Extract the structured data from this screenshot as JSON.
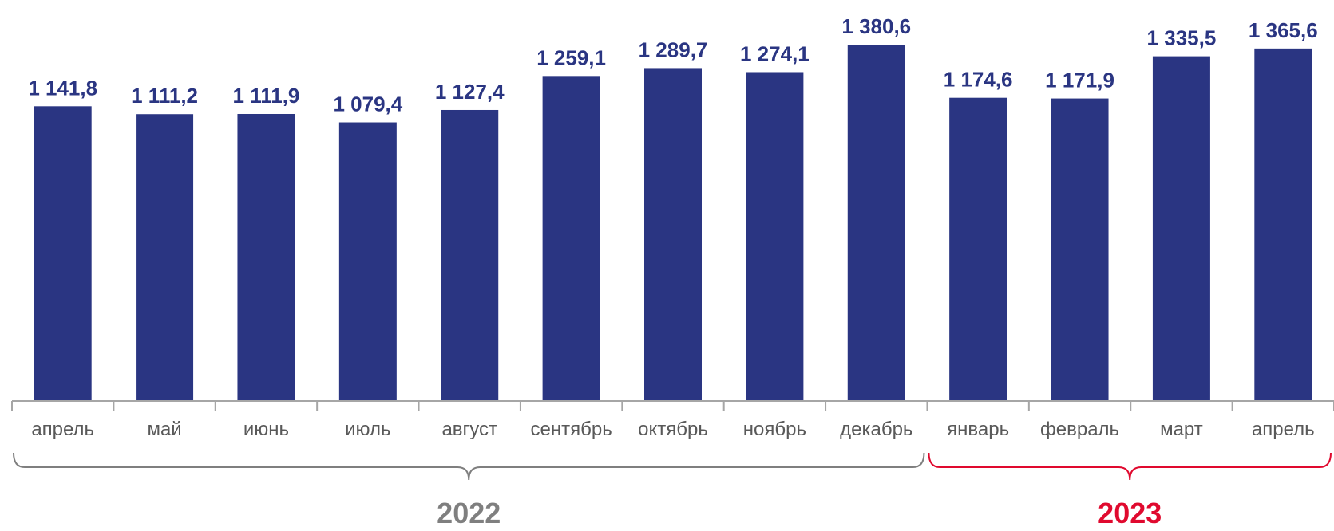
{
  "chart_data": {
    "type": "bar",
    "categories": [
      "апрель",
      "май",
      "июнь",
      "июль",
      "август",
      "сентябрь",
      "октябрь",
      "ноябрь",
      "декабрь",
      "январь",
      "февраль",
      "март",
      "апрель"
    ],
    "values": [
      1141.8,
      1111.2,
      1111.9,
      1079.4,
      1127.4,
      1259.1,
      1289.7,
      1274.1,
      1380.6,
      1174.6,
      1171.9,
      1335.5,
      1365.6
    ],
    "value_labels": [
      "1 141,8",
      "1 111,2",
      "1 111,9",
      "1 079,4",
      "1 127,4",
      "1 259,1",
      "1 289,7",
      "1 274,1",
      "1 380,6",
      "1 174,6",
      "1 171,9",
      "1 335,5",
      "1 365,6"
    ],
    "ylim": [
      0,
      1380.6
    ],
    "grid": false,
    "groups": [
      {
        "label": "2022",
        "start": 0,
        "end": 8,
        "color": "#7f7f7f"
      },
      {
        "label": "2023",
        "start": 9,
        "end": 12,
        "color": "#e0092e"
      }
    ],
    "colors": {
      "bar": "#2a3582",
      "axis": "#a6a6a6",
      "tick_text": "#595959"
    }
  }
}
